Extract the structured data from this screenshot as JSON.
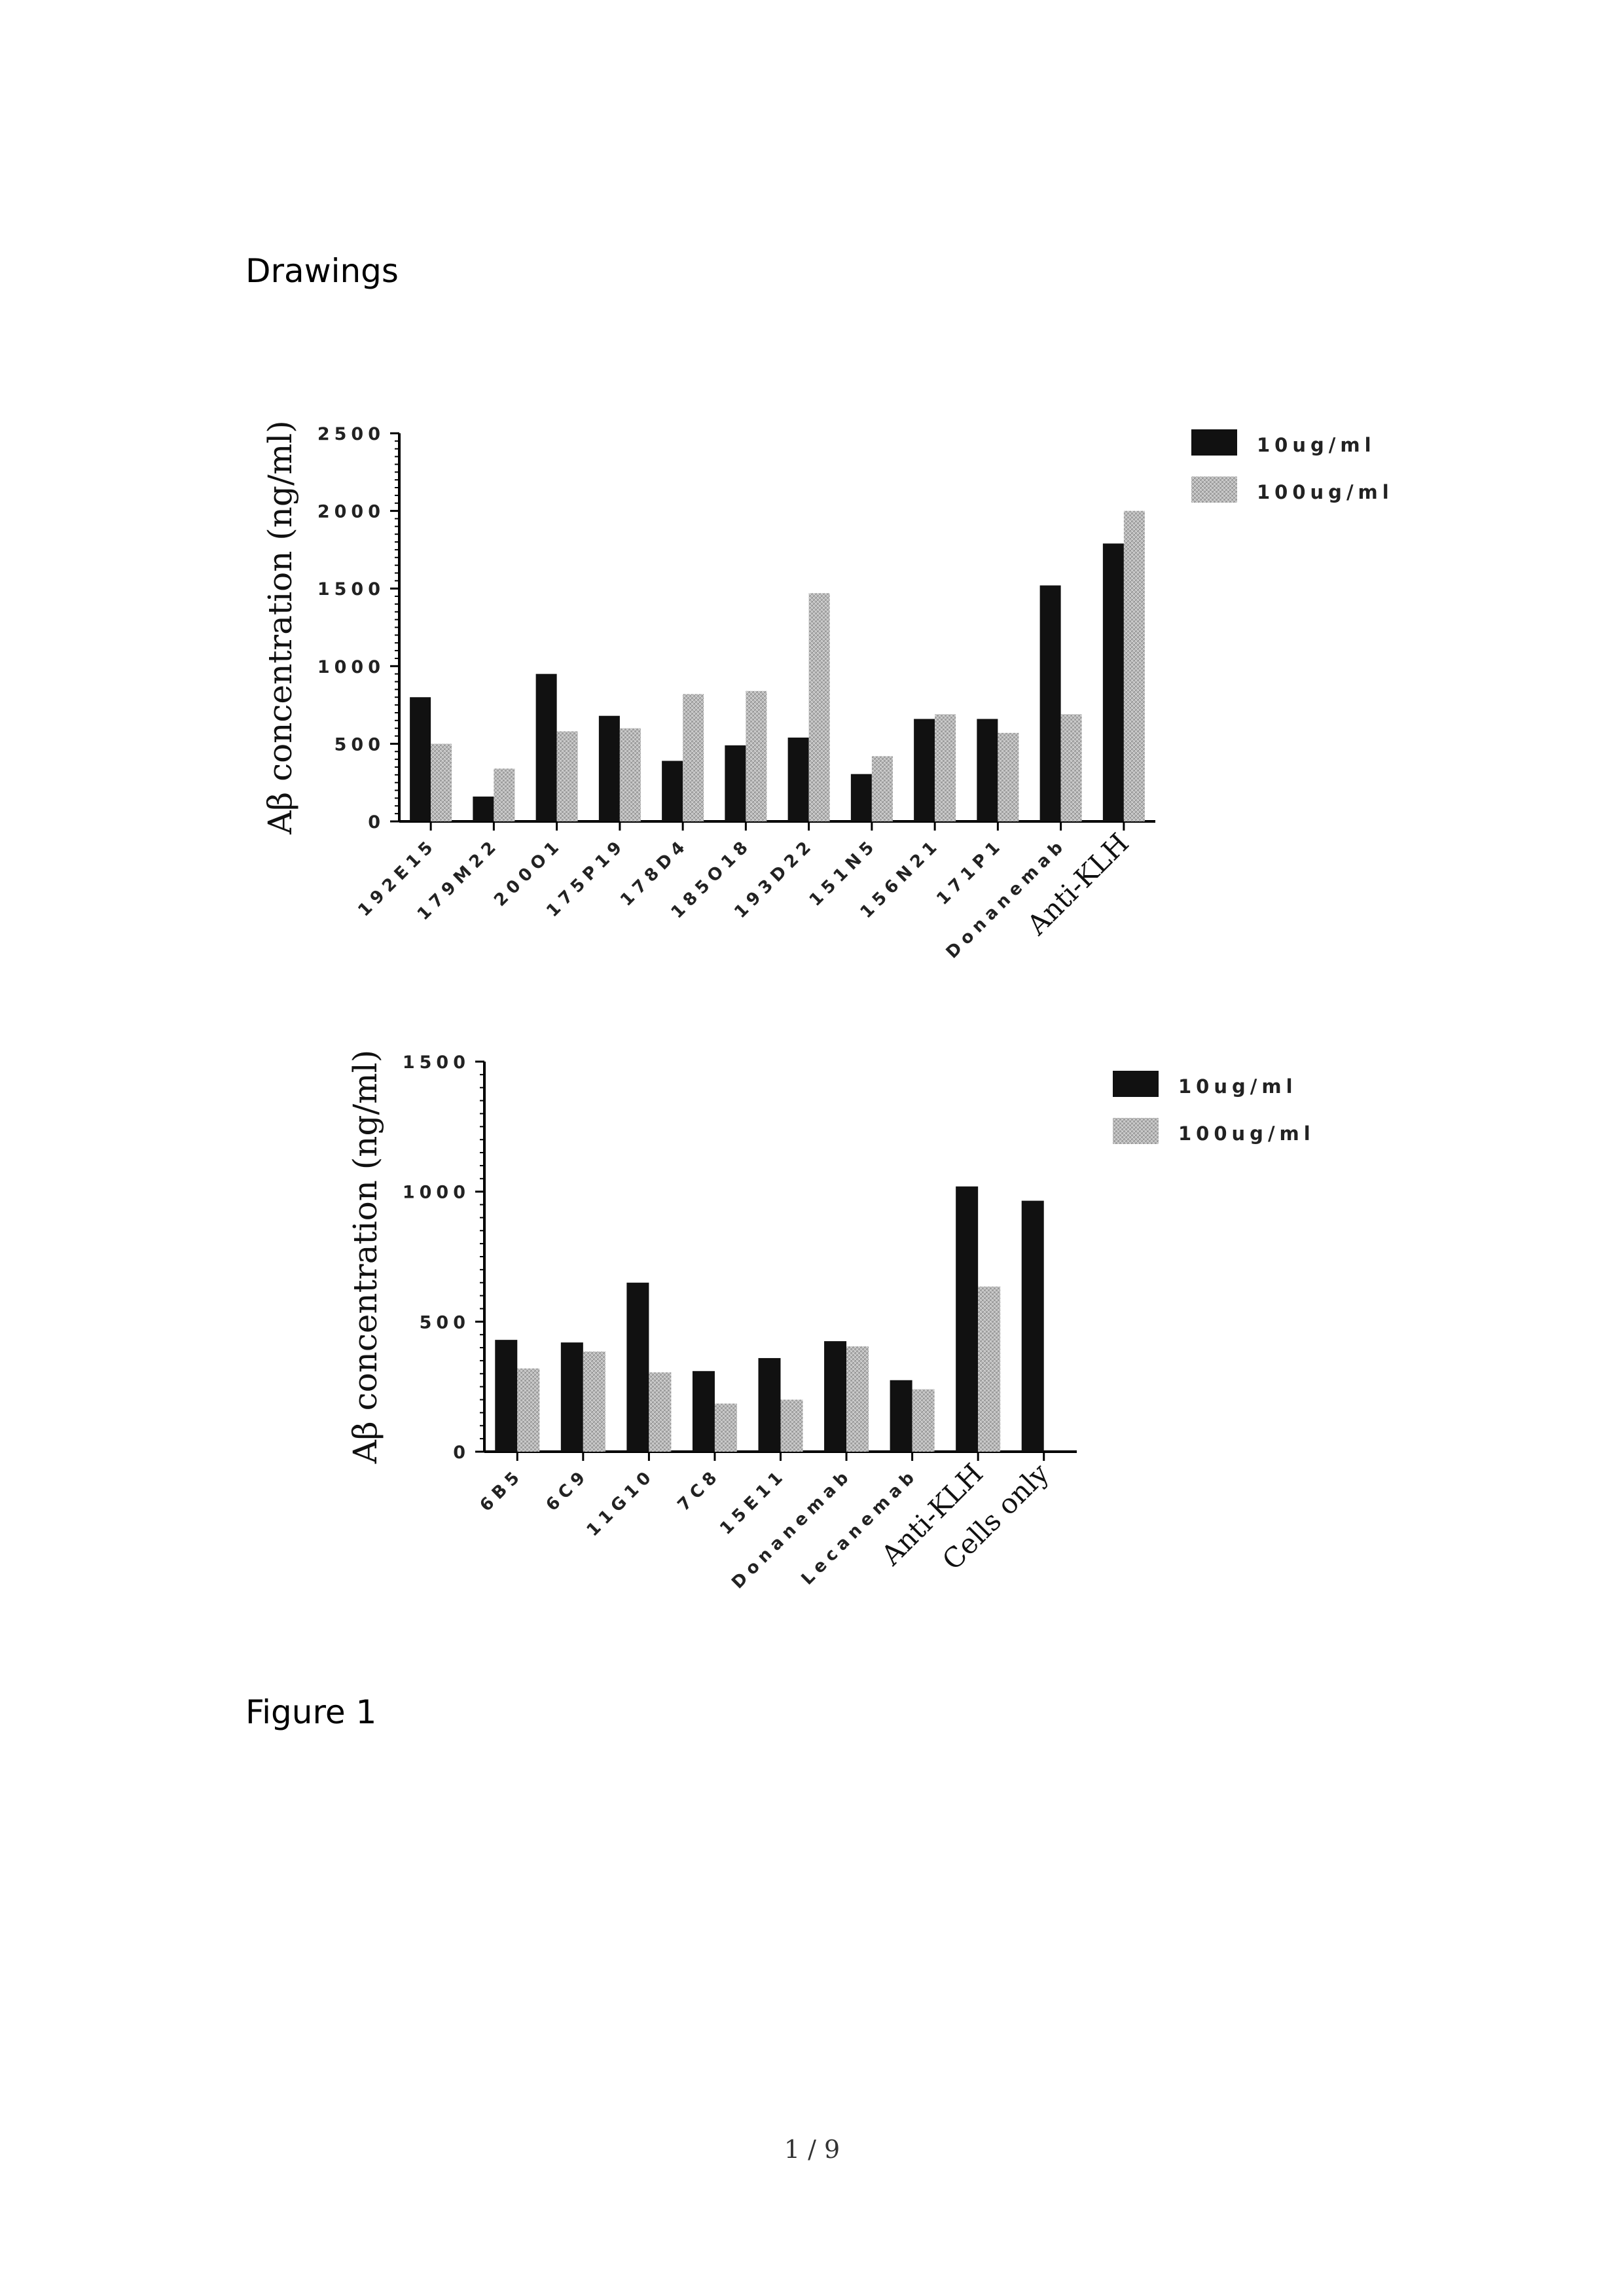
{
  "heading": "Drawings",
  "caption": "Figure 1",
  "page_number": "1 / 9",
  "colors": {
    "series_10": "#111111",
    "series_100": "#b8b8b8"
  },
  "chart_data": [
    {
      "type": "bar",
      "ylabel": "Aβ concentration (ng/ml)",
      "ylim": [
        0,
        2500
      ],
      "yticks": [
        "0",
        "500",
        "1000",
        "1500",
        "2000",
        "2500"
      ],
      "legend_position": "top-right",
      "categories": [
        "192E15",
        "179M22",
        "200O1",
        "175P19",
        "178D4",
        "185O18",
        "193D22",
        "151N5",
        "156N21",
        "171P1",
        "Donanemab",
        "Anti-KLH"
      ],
      "series": [
        {
          "name": "10ug/ml",
          "values": [
            800,
            160,
            950,
            680,
            390,
            490,
            540,
            305,
            660,
            660,
            1520,
            1790
          ]
        },
        {
          "name": "100ug/ml",
          "values": [
            500,
            340,
            580,
            600,
            820,
            840,
            1470,
            420,
            690,
            570,
            690,
            2000
          ]
        }
      ]
    },
    {
      "type": "bar",
      "ylabel": "Aβ concentration (ng/ml)",
      "ylim": [
        0,
        1500
      ],
      "yticks": [
        "0",
        "500",
        "1000",
        "1500"
      ],
      "legend_position": "top-right",
      "categories": [
        "6B5",
        "6C9",
        "11G10",
        "7C8",
        "15E11",
        "Donanemab",
        "Lecanemab",
        "Anti-KLH",
        "Cells only"
      ],
      "series": [
        {
          "name": "10ug/ml",
          "values": [
            430,
            420,
            650,
            310,
            360,
            425,
            275,
            1020,
            965
          ]
        },
        {
          "name": "100ug/ml",
          "values": [
            320,
            385,
            305,
            185,
            200,
            405,
            240,
            635,
            null
          ]
        }
      ]
    }
  ]
}
